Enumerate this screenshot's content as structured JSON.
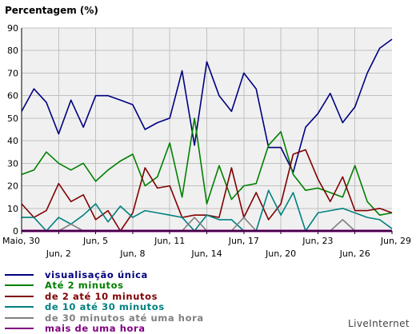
{
  "chart_data": {
    "type": "line",
    "ylabel": "Percentagem (%)",
    "ylim": [
      0,
      90
    ],
    "yticks": [
      0,
      10,
      20,
      30,
      40,
      50,
      60,
      70,
      80,
      90
    ],
    "grid": true,
    "legend_placement": "bottom-left",
    "x_days": 31,
    "x_tick_labels": [
      {
        "day": 0,
        "label": "Maio, 30",
        "row": 1
      },
      {
        "day": 3,
        "label": "Jun, 2",
        "row": 2
      },
      {
        "day": 6,
        "label": "Jun, 5",
        "row": 1
      },
      {
        "day": 9,
        "label": "Jun, 8",
        "row": 2
      },
      {
        "day": 12,
        "label": "Jun, 11",
        "row": 1
      },
      {
        "day": 15,
        "label": "Jun, 14",
        "row": 2
      },
      {
        "day": 18,
        "label": "Jun, 17",
        "row": 1
      },
      {
        "day": 21,
        "label": "Jun, 20",
        "row": 2
      },
      {
        "day": 24,
        "label": "Jun, 23",
        "row": 1
      },
      {
        "day": 27,
        "label": "Jun, 26",
        "row": 2
      },
      {
        "day": 30,
        "label": "Jun, 29",
        "row": 1
      }
    ],
    "series": [
      {
        "name": "visualisação única",
        "color": "#000080",
        "values": [
          53,
          63,
          57,
          43,
          58,
          46,
          60,
          60,
          58,
          56,
          45,
          48,
          50,
          71,
          38,
          75,
          60,
          53,
          70,
          63,
          37,
          37,
          26,
          46,
          52,
          61,
          48,
          55,
          70,
          81,
          85
        ]
      },
      {
        "name": "Até 2 minutos",
        "color": "#008000",
        "values": [
          25,
          27,
          35,
          30,
          27,
          30,
          22,
          27,
          31,
          34,
          20,
          24,
          39,
          15,
          50,
          12,
          29,
          14,
          20,
          21,
          38,
          44,
          25,
          18,
          19,
          17,
          15,
          29,
          13,
          7,
          8
        ]
      },
      {
        "name": "de 2 até 10 minutos",
        "color": "#800000",
        "values": [
          12,
          6,
          9,
          21,
          13,
          16,
          5,
          9,
          0,
          8,
          28,
          19,
          20,
          6,
          7,
          7,
          6,
          28,
          6,
          17,
          5,
          12,
          34,
          36,
          23,
          13,
          24,
          9,
          9,
          10,
          8
        ]
      },
      {
        "name": "de 10 até 30 minutos",
        "color": "#008080",
        "values": [
          6,
          6,
          0,
          6,
          3,
          7,
          12,
          4,
          11,
          6,
          9,
          8,
          7,
          6,
          0,
          7,
          5,
          5,
          0,
          0,
          18,
          7,
          17,
          0,
          8,
          9,
          10,
          8,
          6,
          5,
          1
        ]
      },
      {
        "name": "de 30 minutos até uma hora",
        "color": "#808080",
        "values": [
          0,
          0,
          0,
          0,
          3,
          0,
          0,
          0,
          0,
          0,
          0,
          0,
          0,
          0,
          6,
          0,
          0,
          0,
          6,
          0,
          0,
          0,
          0,
          0,
          0,
          0,
          5,
          0,
          0,
          0,
          0
        ]
      },
      {
        "name": "mais de uma hora",
        "color": "#800080",
        "values": [
          0,
          0,
          0,
          0,
          0,
          0,
          0,
          0,
          0,
          0,
          0,
          0,
          0,
          0,
          0,
          0,
          0,
          0,
          0,
          0,
          0,
          0,
          0,
          0,
          0,
          0,
          0,
          0,
          0,
          0,
          0
        ]
      }
    ]
  },
  "brand": "LiveInternet"
}
